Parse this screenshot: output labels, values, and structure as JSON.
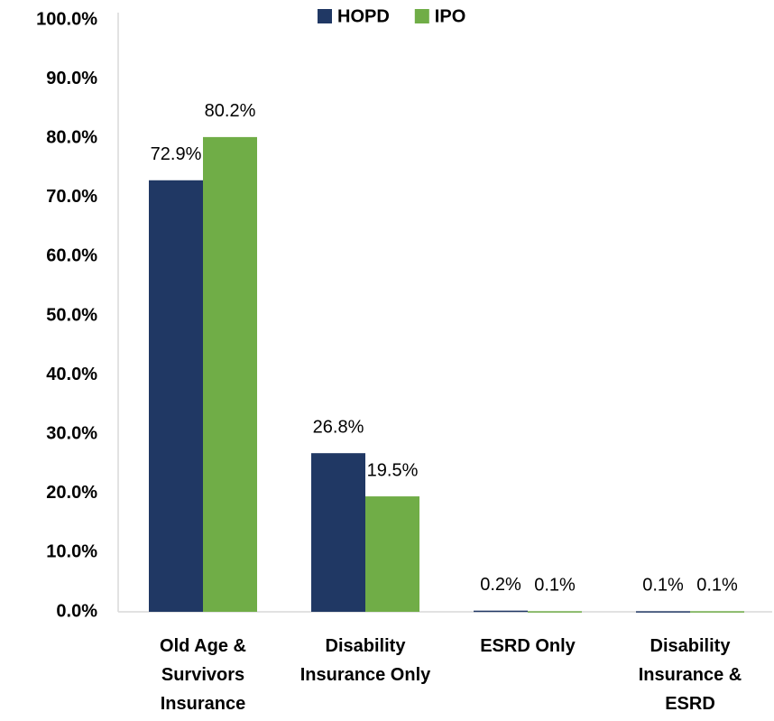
{
  "chart_data": {
    "type": "bar",
    "categories": [
      "Old Age & Survivors Insurance",
      "Disability Insurance Only",
      "ESRD Only",
      "Disability Insurance & ESRD"
    ],
    "series": [
      {
        "name": "HOPD",
        "color": "#203864",
        "values": [
          72.9,
          26.8,
          0.2,
          0.1
        ],
        "value_labels": [
          "72.9%",
          "26.8%",
          "0.2%",
          "0.1%"
        ]
      },
      {
        "name": "IPO",
        "color": "#70ad47",
        "values": [
          80.2,
          19.5,
          0.1,
          0.1
        ],
        "value_labels": [
          "80.2%",
          "19.5%",
          "0.1%",
          "0.1%"
        ]
      }
    ],
    "ylim": [
      0,
      100
    ],
    "yticks": [
      {
        "value": 0,
        "label": "0.0%"
      },
      {
        "value": 10,
        "label": "10.0%"
      },
      {
        "value": 20,
        "label": "20.0%"
      },
      {
        "value": 30,
        "label": "30.0%"
      },
      {
        "value": 40,
        "label": "40.0%"
      },
      {
        "value": 50,
        "label": "50.0%"
      },
      {
        "value": 60,
        "label": "60.0%"
      },
      {
        "value": 70,
        "label": "70.0%"
      },
      {
        "value": 80,
        "label": "80.0%"
      },
      {
        "value": 90,
        "label": "90.0%"
      },
      {
        "value": 100,
        "label": "100.0%"
      }
    ],
    "grid": false,
    "legend": "top"
  }
}
